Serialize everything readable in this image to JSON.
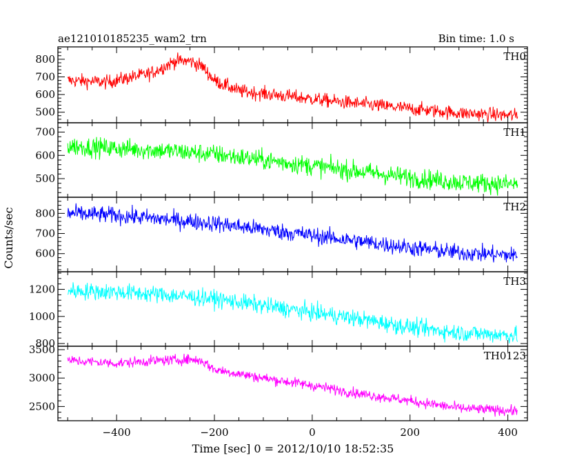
{
  "header": {
    "title": "ae121010185235_wam2_trn",
    "bin_time": "Bin time: 1.0 s"
  },
  "chart_data": {
    "type": "line",
    "xlabel": "Time [sec] 0 = 2012/10/10 18:52:35",
    "ylabel": "Counts/sec",
    "xlim": [
      -520,
      440
    ],
    "x_ticks": [
      "−400",
      "−200",
      "0",
      "200",
      "400"
    ],
    "x_tick_values": [
      -400,
      -200,
      0,
      200,
      400
    ],
    "x_range": [
      -500,
      420
    ],
    "bin_time_s": 1.0,
    "panels": [
      {
        "name": "TH0",
        "color": "#ff0000",
        "ylim": [
          440,
          870
        ],
        "y_ticks": [
          500,
          600,
          700,
          800
        ],
        "y_tick_labels": [
          "500",
          "600",
          "700",
          "800"
        ],
        "trend": [
          [
            -500,
            680
          ],
          [
            -420,
            670
          ],
          [
            -330,
            720
          ],
          [
            -280,
            790
          ],
          [
            -250,
            790
          ],
          [
            -225,
            760
          ],
          [
            -200,
            680
          ],
          [
            -150,
            620
          ],
          [
            -50,
            590
          ],
          [
            50,
            560
          ],
          [
            200,
            520
          ],
          [
            300,
            495
          ],
          [
            420,
            480
          ]
        ],
        "noise": 28
      },
      {
        "name": "TH1",
        "color": "#00ff00",
        "ylim": [
          420,
          740
        ],
        "y_ticks": [
          500,
          600,
          700
        ],
        "y_tick_labels": [
          "500",
          "600",
          "700"
        ],
        "trend": [
          [
            -500,
            640
          ],
          [
            -300,
            620
          ],
          [
            -200,
            605
          ],
          [
            -100,
            580
          ],
          [
            0,
            555
          ],
          [
            100,
            530
          ],
          [
            200,
            505
          ],
          [
            300,
            485
          ],
          [
            420,
            475
          ]
        ],
        "noise": 30
      },
      {
        "name": "TH2",
        "color": "#0000ff",
        "ylim": [
          510,
          880
        ],
        "y_ticks": [
          600,
          700,
          800
        ],
        "y_tick_labels": [
          "600",
          "700",
          "800"
        ],
        "trend": [
          [
            -500,
            800
          ],
          [
            -400,
            790
          ],
          [
            -300,
            770
          ],
          [
            -200,
            750
          ],
          [
            -100,
            720
          ],
          [
            0,
            690
          ],
          [
            100,
            660
          ],
          [
            200,
            630
          ],
          [
            300,
            605
          ],
          [
            420,
            590
          ]
        ],
        "noise": 30
      },
      {
        "name": "TH3",
        "color": "#00ffff",
        "ylim": [
          780,
          1330
        ],
        "y_ticks": [
          800,
          1000,
          1200
        ],
        "y_tick_labels": [
          "800",
          "1000",
          "1200"
        ],
        "trend": [
          [
            -500,
            1190
          ],
          [
            -400,
            1180
          ],
          [
            -300,
            1160
          ],
          [
            -200,
            1130
          ],
          [
            -100,
            1080
          ],
          [
            0,
            1030
          ],
          [
            100,
            980
          ],
          [
            200,
            920
          ],
          [
            300,
            880
          ],
          [
            420,
            860
          ]
        ],
        "noise": 45
      },
      {
        "name": "TH0123",
        "color": "#ff00ff",
        "ylim": [
          2250,
          3560
        ],
        "y_ticks": [
          2500,
          3000,
          3500
        ],
        "y_tick_labels": [
          "2500",
          "3000",
          "3500"
        ],
        "trend": [
          [
            -500,
            3310
          ],
          [
            -400,
            3260
          ],
          [
            -330,
            3300
          ],
          [
            -250,
            3330
          ],
          [
            -225,
            3300
          ],
          [
            -200,
            3150
          ],
          [
            -100,
            3000
          ],
          [
            0,
            2870
          ],
          [
            100,
            2720
          ],
          [
            200,
            2600
          ],
          [
            300,
            2470
          ],
          [
            420,
            2420
          ]
        ],
        "noise": 65
      }
    ]
  }
}
